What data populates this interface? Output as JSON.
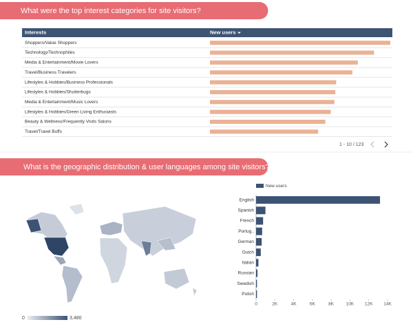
{
  "sections": [
    {
      "title": "What were the top interest categories for site visitors?"
    },
    {
      "title": "What is the geographic distribution & user languages among site visitors?"
    }
  ],
  "chart_data": [
    {
      "type": "table-bar",
      "columns": [
        "Interests",
        "New users"
      ],
      "categories": [
        "Shoppers/Value Shoppers",
        "Technology/Technophiles",
        "Media & Entertainment/Movie Lovers",
        "Travel/Business Travelers",
        "Lifestyles & Hobbies/Business Professionals",
        "Lifestyles & Hobbies/Shutterbugs",
        "Media & Entertainment/Music Lovers",
        "Lifestyles & Hobbies/Green Living Enthusiasts",
        "Beauty & Wellness/Frequently Visits Salons",
        "Travel/Travel Buffs"
      ],
      "values": [
        100,
        91,
        82,
        79,
        70,
        69.5,
        69,
        67,
        64,
        60
      ],
      "xlim": [
        0,
        100
      ],
      "color": "#ebb195",
      "pagination": "1 - 10 / 123"
    },
    {
      "type": "map",
      "color_scale": {
        "min": 0,
        "max": {
          "value": 3480,
          "label": "3,480"
        },
        "colors": [
          "#e9ecf1",
          "#3d5373"
        ]
      }
    },
    {
      "type": "hbar",
      "categories": [
        "English",
        "Spanish",
        "French",
        "Portug..",
        "German",
        "Dutch",
        "Italian",
        "Russian",
        "Swedish",
        "Polish"
      ],
      "series": [
        {
          "name": "New users",
          "color": "#3d5373",
          "values": [
            13200,
            1000,
            750,
            650,
            600,
            500,
            250,
            150,
            100,
            100
          ]
        }
      ],
      "xlim": [
        0,
        14000
      ],
      "xticks": [
        0,
        {
          "value": 2000,
          "label": "2K"
        },
        {
          "value": 4000,
          "label": "4K"
        },
        {
          "value": 6000,
          "label": "6K"
        },
        {
          "value": 8000,
          "label": "8K"
        },
        {
          "value": 10000,
          "label": "10K"
        },
        {
          "value": 12000,
          "label": "12K"
        },
        {
          "value": 14000,
          "label": "14K"
        }
      ]
    }
  ]
}
